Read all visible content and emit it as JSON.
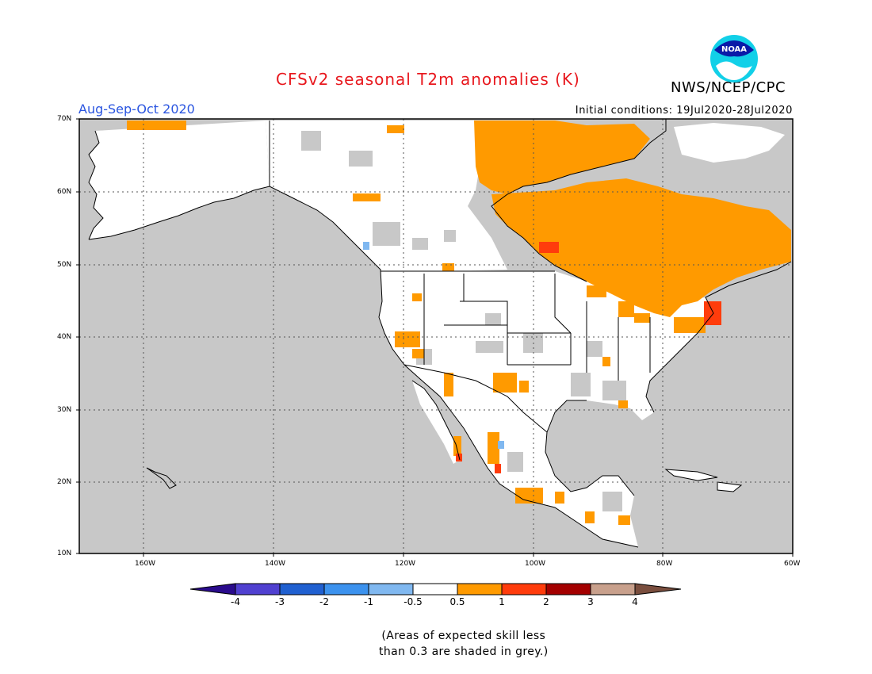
{
  "title": "CFSv2 seasonal T2m anomalies (K)",
  "agency": "NWS/NCEP/CPC",
  "logo_text": "NOAA",
  "period": "Aug-Sep-Oct 2020",
  "initial_conditions": "Initial conditions: 19Jul2020-28Jul2020",
  "lat_labels": [
    "70N",
    "60N",
    "50N",
    "40N",
    "30N",
    "20N",
    "10N"
  ],
  "lon_labels": [
    "160W",
    "140W",
    "120W",
    "100W",
    "80W",
    "60W"
  ],
  "colorbar": {
    "ticks": [
      "-4",
      "-3",
      "-2",
      "-1",
      "-0.5",
      "0.5",
      "1",
      "2",
      "3",
      "4"
    ],
    "colors": [
      "#2a0b8c",
      "#5040d0",
      "#2060d0",
      "#3c92ee",
      "#80b8f0",
      "#ffffff",
      "#ff9a00",
      "#ff3c0c",
      "#a40000",
      "#c8a08c",
      "#7a4e3e"
    ]
  },
  "note_lines": [
    "(Areas of expected skill less",
    "than 0.3 are shaded in grey.)"
  ],
  "colors": {
    "no_skill_grey": "#c8c8c8",
    "anom_0_5_to_1": "#ff9a00",
    "anom_1_to_2": "#ff3c0c",
    "anom_neg_1_to_neg_0_5": "#80b8f0",
    "title_red": "#e8181e",
    "period_blue": "#2a55e0"
  }
}
